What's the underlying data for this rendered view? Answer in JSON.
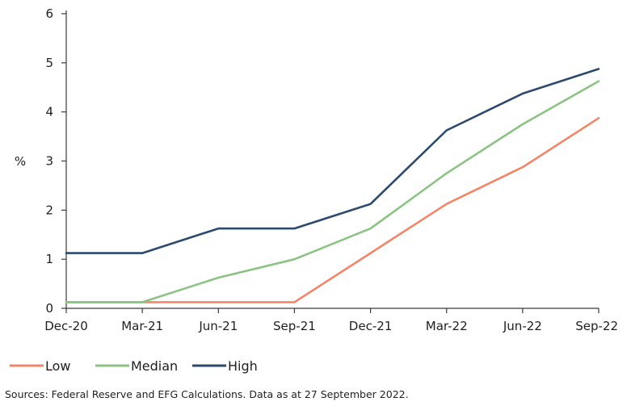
{
  "chart_data": {
    "type": "line",
    "title": "",
    "xlabel": "",
    "ylabel": "%",
    "categories": [
      "Dec-20",
      "Mar-21",
      "Jun-21",
      "Sep-21",
      "Dec-21",
      "Mar-22",
      "Jun-22",
      "Sep-22"
    ],
    "ylim": [
      0,
      6
    ],
    "yticks": [
      "0",
      "1",
      "2",
      "3",
      "4",
      "5",
      "6"
    ],
    "grid": false,
    "legend_position": "bottom-left",
    "series": [
      {
        "name": "Low",
        "color": "#f0876a",
        "values": [
          0.125,
          0.125,
          0.125,
          0.125,
          1.125,
          2.125,
          2.875,
          3.875
        ]
      },
      {
        "name": "Median",
        "color": "#8cc283",
        "values": [
          0.125,
          0.125,
          0.625,
          1.0,
          1.625,
          2.75,
          3.75,
          4.625
        ]
      },
      {
        "name": "High",
        "color": "#2d4a6e",
        "values": [
          1.125,
          1.125,
          1.625,
          1.625,
          2.125,
          3.625,
          4.375,
          4.875
        ]
      }
    ]
  },
  "footer": {
    "source": "Sources: Federal Reserve and EFG Calculations. Data as at 27 September 2022."
  }
}
